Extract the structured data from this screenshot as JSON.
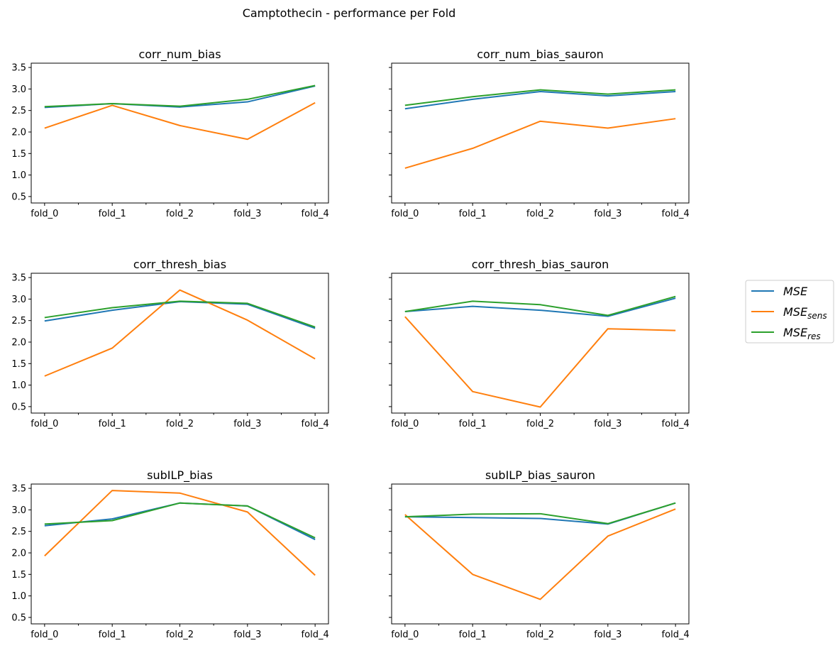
{
  "figure": {
    "title": "Camptothecin - performance per Fold"
  },
  "colors": {
    "MSE": "#1f77b4",
    "MSE_sens": "#ff7f0e",
    "MSE_res": "#2ca02c"
  },
  "legend": {
    "placement": "right",
    "entries": [
      {
        "key": "MSE",
        "base": "MSE",
        "sub": ""
      },
      {
        "key": "MSE_sens",
        "base": "MSE",
        "sub": "sens"
      },
      {
        "key": "MSE_res",
        "base": "MSE",
        "sub": "res"
      }
    ]
  },
  "chart_data": [
    {
      "type": "line",
      "title": "corr_num_bias",
      "categories": [
        "fold_0",
        "fold_1",
        "fold_2",
        "fold_3",
        "fold_4"
      ],
      "ylim": [
        0.35,
        3.6
      ],
      "yticks": [
        0.5,
        1.0,
        1.5,
        2.0,
        2.5,
        3.0,
        3.5
      ],
      "show_yticklabels": true,
      "series": [
        {
          "name": "MSE",
          "values": [
            2.57,
            2.66,
            2.58,
            2.7,
            3.07
          ]
        },
        {
          "name": "MSE_sens",
          "values": [
            2.09,
            2.62,
            2.15,
            1.83,
            2.68
          ]
        },
        {
          "name": "MSE_res",
          "values": [
            2.59,
            2.66,
            2.6,
            2.76,
            3.08
          ]
        }
      ]
    },
    {
      "type": "line",
      "title": "corr_num_bias_sauron",
      "categories": [
        "fold_0",
        "fold_1",
        "fold_2",
        "fold_3",
        "fold_4"
      ],
      "ylim": [
        0.35,
        3.6
      ],
      "yticks": [
        0.5,
        1.0,
        1.5,
        2.0,
        2.5,
        3.0,
        3.5
      ],
      "show_yticklabels": false,
      "series": [
        {
          "name": "MSE",
          "values": [
            2.54,
            2.76,
            2.94,
            2.84,
            2.94
          ]
        },
        {
          "name": "MSE_sens",
          "values": [
            1.16,
            1.62,
            2.25,
            2.09,
            2.31
          ]
        },
        {
          "name": "MSE_res",
          "values": [
            2.62,
            2.82,
            2.98,
            2.88,
            2.98
          ]
        }
      ]
    },
    {
      "type": "line",
      "title": "corr_thresh_bias",
      "categories": [
        "fold_0",
        "fold_1",
        "fold_2",
        "fold_3",
        "fold_4"
      ],
      "ylim": [
        0.35,
        3.6
      ],
      "yticks": [
        0.5,
        1.0,
        1.5,
        2.0,
        2.5,
        3.0,
        3.5
      ],
      "show_yticklabels": true,
      "series": [
        {
          "name": "MSE",
          "values": [
            2.49,
            2.74,
            2.94,
            2.88,
            2.32
          ]
        },
        {
          "name": "MSE_sens",
          "values": [
            1.21,
            1.86,
            3.21,
            2.51,
            1.61
          ]
        },
        {
          "name": "MSE_res",
          "values": [
            2.57,
            2.8,
            2.95,
            2.9,
            2.35
          ]
        }
      ]
    },
    {
      "type": "line",
      "title": "corr_thresh_bias_sauron",
      "categories": [
        "fold_0",
        "fold_1",
        "fold_2",
        "fold_3",
        "fold_4"
      ],
      "ylim": [
        0.35,
        3.6
      ],
      "yticks": [
        0.5,
        1.0,
        1.5,
        2.0,
        2.5,
        3.0,
        3.5
      ],
      "show_yticklabels": false,
      "series": [
        {
          "name": "MSE",
          "values": [
            2.71,
            2.83,
            2.74,
            2.6,
            3.02
          ]
        },
        {
          "name": "MSE_sens",
          "values": [
            2.59,
            0.85,
            0.49,
            2.31,
            2.27
          ]
        },
        {
          "name": "MSE_res",
          "values": [
            2.71,
            2.95,
            2.87,
            2.62,
            3.06
          ]
        }
      ]
    },
    {
      "type": "line",
      "title": "subILP_bias",
      "categories": [
        "fold_0",
        "fold_1",
        "fold_2",
        "fold_3",
        "fold_4"
      ],
      "ylim": [
        0.35,
        3.6
      ],
      "yticks": [
        0.5,
        1.0,
        1.5,
        2.0,
        2.5,
        3.0,
        3.5
      ],
      "show_yticklabels": true,
      "series": [
        {
          "name": "MSE",
          "values": [
            2.63,
            2.79,
            3.16,
            3.09,
            2.31
          ]
        },
        {
          "name": "MSE_sens",
          "values": [
            1.93,
            3.45,
            3.39,
            2.95,
            1.48
          ]
        },
        {
          "name": "MSE_res",
          "values": [
            2.67,
            2.75,
            3.16,
            3.09,
            2.35
          ]
        }
      ]
    },
    {
      "type": "line",
      "title": "subILP_bias_sauron",
      "categories": [
        "fold_0",
        "fold_1",
        "fold_2",
        "fold_3",
        "fold_4"
      ],
      "ylim": [
        0.35,
        3.6
      ],
      "yticks": [
        0.5,
        1.0,
        1.5,
        2.0,
        2.5,
        3.0,
        3.5
      ],
      "show_yticklabels": false,
      "series": [
        {
          "name": "MSE",
          "values": [
            2.84,
            2.82,
            2.8,
            2.67,
            3.16
          ]
        },
        {
          "name": "MSE_sens",
          "values": [
            2.89,
            1.5,
            0.92,
            2.39,
            3.02
          ]
        },
        {
          "name": "MSE_res",
          "values": [
            2.84,
            2.9,
            2.91,
            2.68,
            3.16
          ]
        }
      ]
    }
  ]
}
